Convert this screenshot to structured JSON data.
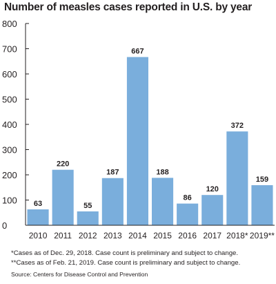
{
  "chart_data": {
    "type": "bar",
    "title": "Number of measles cases reported in U.S. by year",
    "categories": [
      "2010",
      "2011",
      "2012",
      "2013",
      "2014",
      "2015",
      "2016",
      "2017",
      "2018*",
      "2019**"
    ],
    "values": [
      63,
      220,
      55,
      187,
      667,
      188,
      86,
      120,
      372,
      159
    ],
    "data_labels": [
      "63",
      "220",
      "55",
      "187",
      "667",
      "188",
      "86",
      "120",
      "372",
      "159"
    ],
    "ylim": [
      0,
      800
    ],
    "yticks": [
      0,
      100,
      200,
      300,
      400,
      500,
      600,
      700,
      800
    ],
    "ytick_labels": [
      "0",
      "100",
      "200",
      "300",
      "400",
      "500",
      "600",
      "700",
      "800"
    ],
    "xlabel": "",
    "ylabel": "",
    "grid": false,
    "bar_color": "#7aaedc"
  },
  "notes": [
    "*Cases as of Dec. 29, 2018. Case count is preliminary and subject to change.",
    "**Cases as of Feb. 21, 2019. Case count is preliminary and subject to change."
  ],
  "source": "Source: Centers for Disease Control and Prevention"
}
